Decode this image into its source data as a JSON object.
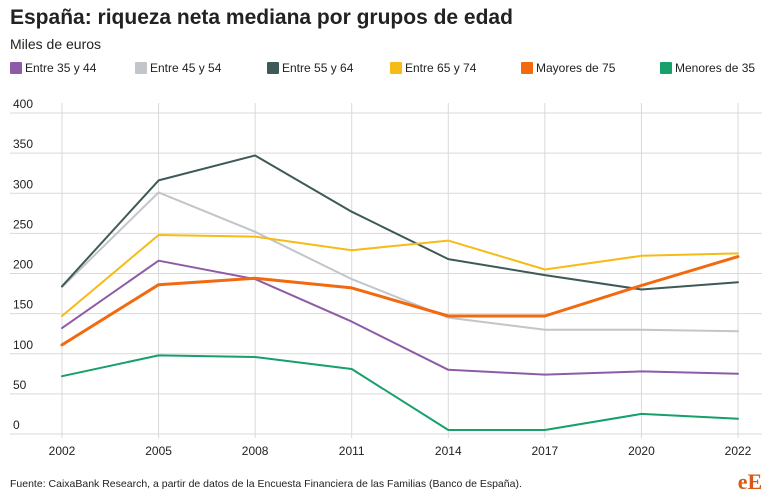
{
  "title": "España: riqueza neta mediana por grupos de edad",
  "subtitle": "Miles de euros",
  "source": "Fuente: CaixaBank Research, a partir de datos de la Encuesta Financiera de las Familias (Banco de España).",
  "logo_text": "eE",
  "colors": {
    "grid": "#d9d9d9",
    "axis_text": "#222222",
    "logo": "#d85a17"
  },
  "chart_data": {
    "type": "line",
    "title": "España: riqueza neta mediana por grupos de edad",
    "ylabel": "Miles de euros",
    "xlabel": "",
    "ylim": [
      0,
      400
    ],
    "yticks": [
      0,
      50,
      100,
      150,
      200,
      250,
      300,
      350,
      400
    ],
    "grid": true,
    "legend": "top",
    "categories": [
      "2002",
      "2005",
      "2008",
      "2011",
      "2014",
      "2017",
      "2020",
      "2022"
    ],
    "series": [
      {
        "name": "Entre 35 y 44",
        "color": "#8e5ca6",
        "values": [
          132,
          216,
          193,
          140,
          80,
          74,
          78,
          75
        ]
      },
      {
        "name": "Entre 45 y 54",
        "color": "#c2c5c9",
        "values": [
          183,
          301,
          252,
          193,
          145,
          130,
          130,
          128
        ]
      },
      {
        "name": "Entre 55 y 64",
        "color": "#3e5a58",
        "values": [
          184,
          316,
          347,
          277,
          218,
          198,
          180,
          189
        ]
      },
      {
        "name": "Entre 65 y 74",
        "color": "#f6bb18",
        "values": [
          147,
          248,
          246,
          229,
          241,
          205,
          222,
          225
        ]
      },
      {
        "name": "Mayores de 75",
        "color": "#f26a10",
        "values": [
          111,
          186,
          194,
          182,
          147,
          147,
          185,
          221
        ]
      },
      {
        "name": "Menores de 35",
        "color": "#16a06a",
        "values": [
          72,
          98,
          96,
          81,
          5,
          5,
          25,
          19
        ]
      }
    ]
  }
}
